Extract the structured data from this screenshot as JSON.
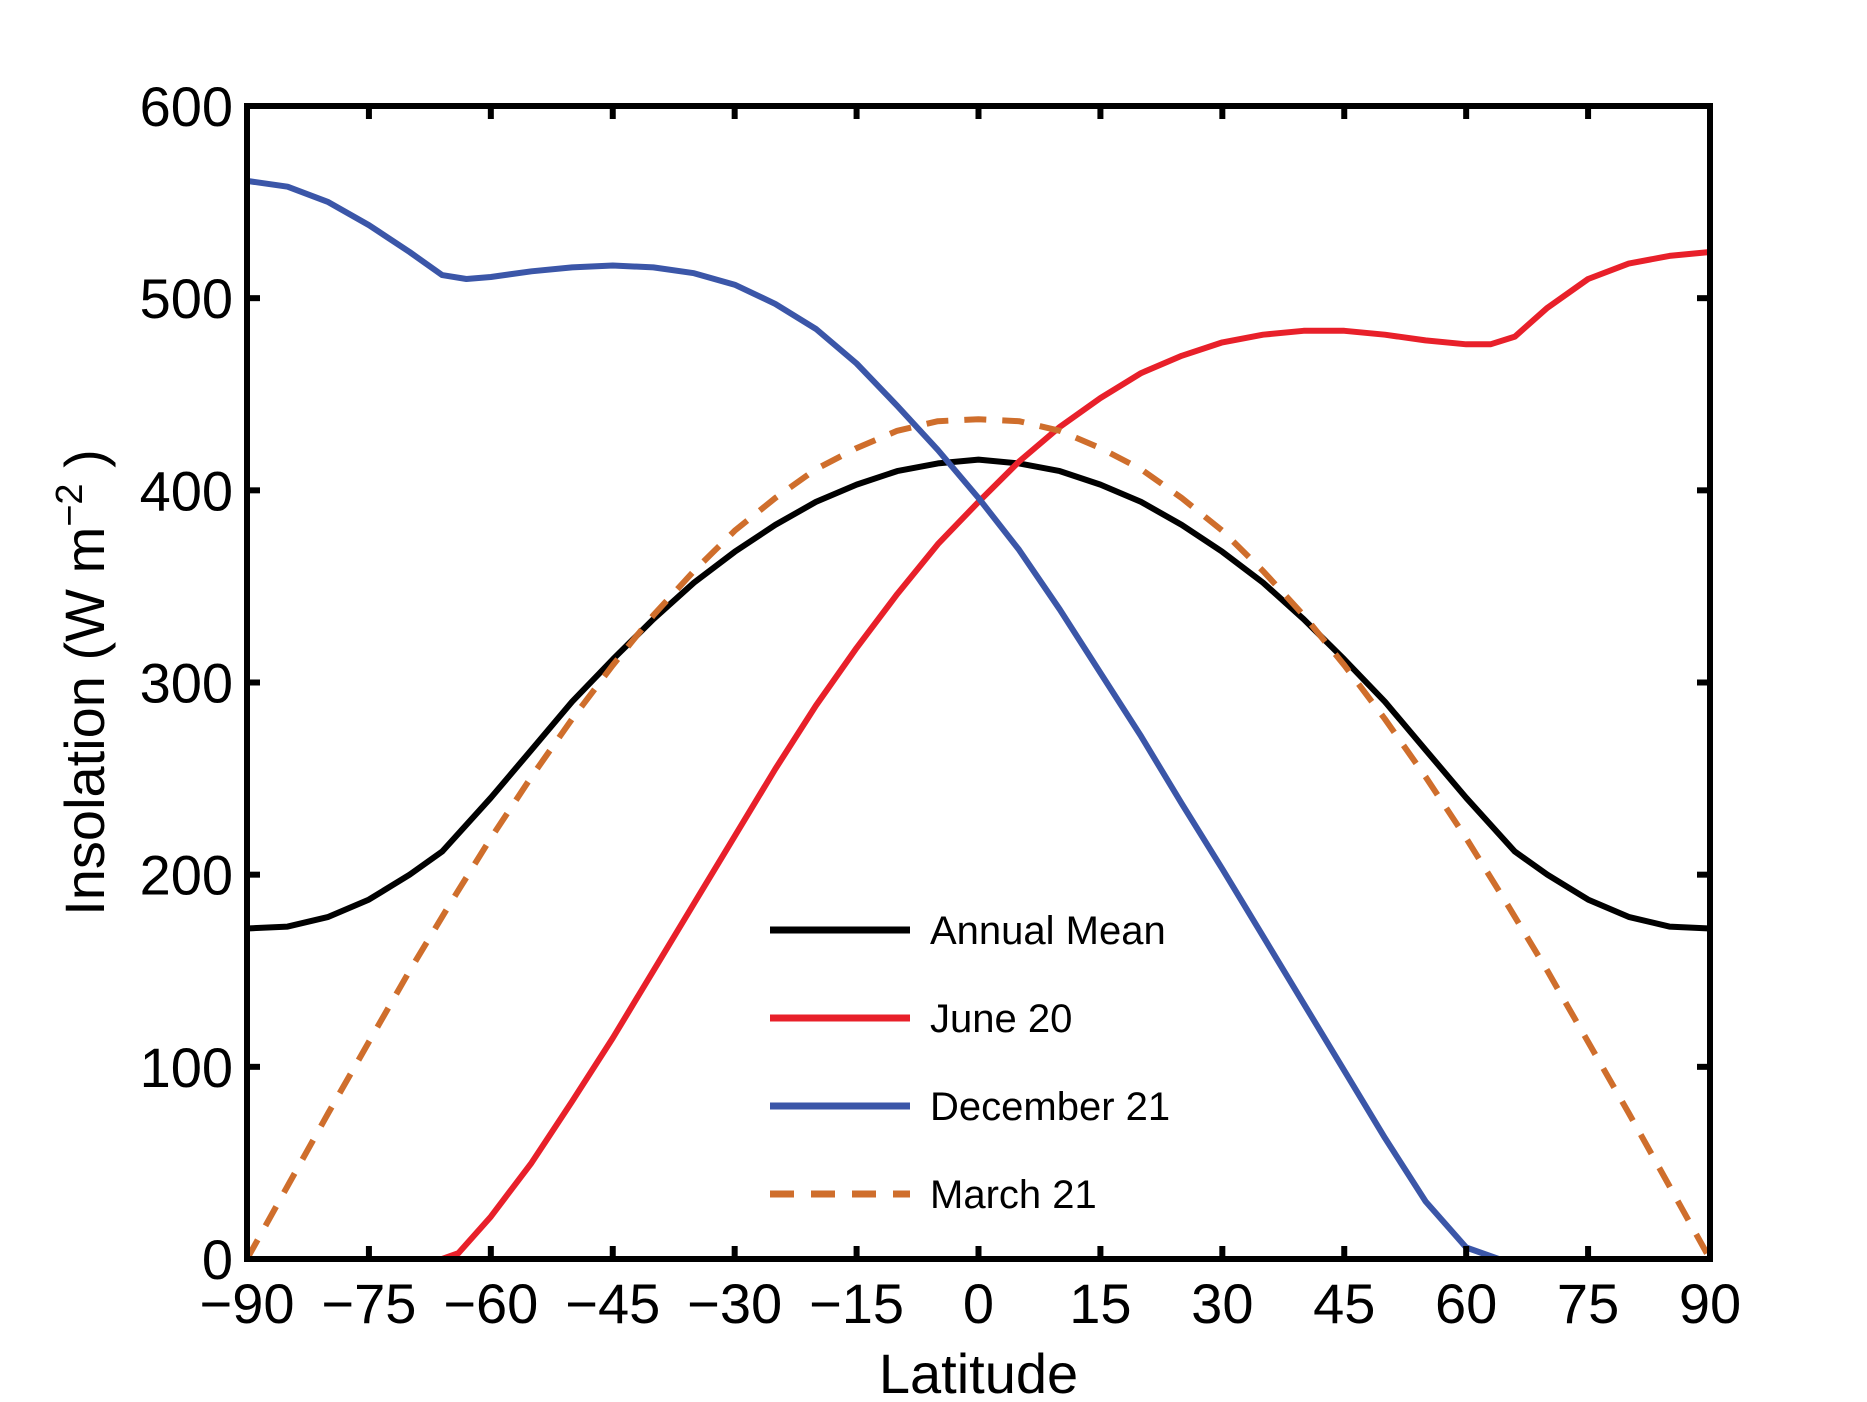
{
  "chart_data": {
    "type": "line",
    "xlabel": "Latitude",
    "ylabel": "Insolation (W m",
    "ylabel_sup": "−2",
    "ylabel_close": " )",
    "xlim": [
      -90,
      90
    ],
    "ylim": [
      0,
      600
    ],
    "xticks": [
      -90,
      -75,
      -60,
      -45,
      -30,
      -15,
      0,
      15,
      30,
      45,
      60,
      75,
      90
    ],
    "xtick_labels": [
      "−90",
      "−75",
      "−60",
      "−45",
      "−30",
      "−15",
      "0",
      "15",
      "30",
      "45",
      "60",
      "75",
      "90"
    ],
    "yticks": [
      0,
      100,
      200,
      300,
      400,
      500,
      600
    ],
    "ytick_labels": [
      "0",
      "100",
      "200",
      "300",
      "400",
      "500",
      "600"
    ],
    "grid": false,
    "legend_position": "lower-center",
    "series": [
      {
        "name": "Annual Mean",
        "color": "#000000",
        "dash": "solid",
        "x": [
          -90,
          -85,
          -80,
          -75,
          -70,
          -66,
          -60,
          -55,
          -50,
          -45,
          -40,
          -35,
          -30,
          -25,
          -20,
          -15,
          -10,
          -5,
          0,
          5,
          10,
          15,
          20,
          25,
          30,
          35,
          40,
          45,
          50,
          55,
          60,
          66,
          70,
          75,
          80,
          85,
          90
        ],
        "y": [
          172,
          173,
          178,
          187,
          200,
          212,
          240,
          265,
          290,
          312,
          333,
          352,
          368,
          382,
          394,
          403,
          410,
          414,
          416,
          414,
          410,
          403,
          394,
          382,
          368,
          352,
          333,
          312,
          290,
          265,
          240,
          212,
          200,
          187,
          178,
          173,
          172
        ]
      },
      {
        "name": "June 20",
        "color": "#e8202a",
        "dash": "solid",
        "x": [
          -90,
          -80,
          -70,
          -66,
          -64,
          -60,
          -55,
          -50,
          -45,
          -40,
          -35,
          -30,
          -25,
          -20,
          -15,
          -10,
          -5,
          0,
          5,
          10,
          15,
          20,
          25,
          30,
          35,
          40,
          45,
          50,
          55,
          60,
          63,
          66,
          70,
          75,
          80,
          85,
          90
        ],
        "y": [
          0,
          0,
          0,
          0,
          3,
          22,
          50,
          82,
          115,
          150,
          185,
          220,
          255,
          288,
          318,
          346,
          372,
          394,
          415,
          433,
          448,
          461,
          470,
          477,
          481,
          483,
          483,
          481,
          478,
          476,
          476,
          480,
          495,
          510,
          518,
          522,
          524
        ]
      },
      {
        "name": "December 21",
        "color": "#3b56a8",
        "dash": "solid",
        "x": [
          -90,
          -85,
          -80,
          -75,
          -70,
          -66,
          -63,
          -60,
          -55,
          -50,
          -45,
          -40,
          -35,
          -30,
          -25,
          -20,
          -15,
          -10,
          -5,
          0,
          5,
          10,
          15,
          20,
          25,
          30,
          35,
          40,
          45,
          50,
          55,
          60,
          64,
          66,
          70,
          80,
          90
        ],
        "y": [
          561,
          558,
          550,
          538,
          524,
          512,
          510,
          511,
          514,
          516,
          517,
          516,
          513,
          507,
          497,
          484,
          466,
          444,
          421,
          396,
          369,
          338,
          305,
          272,
          237,
          203,
          168,
          133,
          98,
          63,
          30,
          6,
          0,
          0,
          0,
          0,
          0
        ]
      },
      {
        "name": "March 21",
        "color": "#cf6e2c",
        "dash": "dashed",
        "x": [
          -90,
          -85,
          -80,
          -75,
          -70,
          -65,
          -60,
          -55,
          -50,
          -45,
          -40,
          -35,
          -30,
          -25,
          -20,
          -15,
          -10,
          -5,
          0,
          5,
          10,
          15,
          20,
          25,
          30,
          35,
          40,
          45,
          50,
          55,
          60,
          65,
          70,
          75,
          80,
          85,
          90
        ],
        "y": [
          0,
          38,
          76,
          113,
          150,
          185,
          219,
          251,
          281,
          309,
          335,
          358,
          379,
          396,
          411,
          422,
          431,
          436,
          437,
          436,
          431,
          422,
          411,
          396,
          379,
          358,
          335,
          309,
          281,
          251,
          219,
          185,
          150,
          113,
          76,
          38,
          0
        ]
      }
    ]
  }
}
